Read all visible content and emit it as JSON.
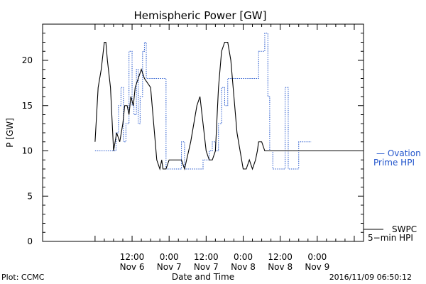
{
  "chart_data": {
    "type": "line",
    "title": "Hemispheric Power [GW]",
    "ylabel": "P [GW]",
    "xlabel": "Date and Time",
    "ylim": [
      0,
      24
    ],
    "xlim_hours": [
      -17,
      87
    ],
    "yticks": [
      0,
      5,
      10,
      15,
      20
    ],
    "xticks": [
      {
        "hour": 12,
        "line1": "12:00",
        "line2": "Nov 6"
      },
      {
        "hour": 24,
        "line1": "0:00",
        "line2": "Nov 7"
      },
      {
        "hour": 36,
        "line1": "12:00",
        "line2": "Nov 7"
      },
      {
        "hour": 48,
        "line1": "0:00",
        "line2": "Nov 8"
      },
      {
        "hour": 60,
        "line1": "12:00",
        "line2": "Nov 8"
      },
      {
        "hour": 72,
        "line1": "0:00",
        "line2": "Nov 9"
      }
    ],
    "series": [
      {
        "name": "Ovation Prime HPI",
        "color": "#2255cc",
        "style": "dotted-step",
        "points": [
          [
            0,
            10
          ],
          [
            6,
            10
          ],
          [
            6.8,
            12
          ],
          [
            7.6,
            15
          ],
          [
            8.4,
            17
          ],
          [
            9.2,
            11
          ],
          [
            10,
            13
          ],
          [
            11,
            21
          ],
          [
            12,
            15
          ],
          [
            12.6,
            14
          ],
          [
            13.4,
            19
          ],
          [
            14,
            13
          ],
          [
            14.6,
            16
          ],
          [
            15.4,
            21
          ],
          [
            16,
            22
          ],
          [
            16.6,
            18
          ],
          [
            18,
            18
          ],
          [
            19.4,
            18
          ],
          [
            21,
            18
          ],
          [
            23,
            8
          ],
          [
            26,
            8
          ],
          [
            28,
            11
          ],
          [
            29,
            8
          ],
          [
            32,
            8
          ],
          [
            33,
            8
          ],
          [
            35,
            9
          ],
          [
            36,
            9
          ],
          [
            37,
            10
          ],
          [
            38,
            11
          ],
          [
            39,
            10
          ],
          [
            40,
            13
          ],
          [
            41,
            17
          ],
          [
            42,
            15
          ],
          [
            43,
            18
          ],
          [
            45,
            18
          ],
          [
            47,
            18
          ],
          [
            49,
            18
          ],
          [
            51,
            18
          ],
          [
            53,
            21
          ],
          [
            55,
            23
          ],
          [
            55.5,
            23
          ],
          [
            56,
            16
          ],
          [
            56.6,
            10
          ],
          [
            57.6,
            8
          ],
          [
            61,
            8
          ],
          [
            61.6,
            17
          ],
          [
            62.6,
            8
          ],
          [
            64,
            8
          ],
          [
            66,
            11
          ],
          [
            68,
            11
          ],
          [
            69,
            11
          ],
          [
            70,
            11
          ]
        ]
      },
      {
        "name": "SWPC 5-min HPI",
        "color": "#000000",
        "style": "solid",
        "points": [
          [
            0,
            11
          ],
          [
            1,
            17
          ],
          [
            2,
            19
          ],
          [
            3,
            22
          ],
          [
            3.5,
            22
          ],
          [
            4,
            20
          ],
          [
            5,
            17
          ],
          [
            6,
            10
          ],
          [
            7,
            12
          ],
          [
            8,
            11
          ],
          [
            9,
            13
          ],
          [
            9.6,
            15
          ],
          [
            10.4,
            15
          ],
          [
            11,
            14
          ],
          [
            11.6,
            16
          ],
          [
            12.4,
            15
          ],
          [
            13,
            17
          ],
          [
            14,
            18
          ],
          [
            15,
            19
          ],
          [
            16,
            18
          ],
          [
            18,
            17
          ],
          [
            19,
            13
          ],
          [
            20,
            9
          ],
          [
            21,
            8
          ],
          [
            21.6,
            9
          ],
          [
            22,
            8
          ],
          [
            23,
            8
          ],
          [
            24,
            9
          ],
          [
            25,
            9
          ],
          [
            28,
            9
          ],
          [
            29,
            8
          ],
          [
            31,
            11
          ],
          [
            32,
            13
          ],
          [
            33,
            15
          ],
          [
            34,
            16
          ],
          [
            35,
            13
          ],
          [
            36,
            10
          ],
          [
            37,
            9
          ],
          [
            38,
            9
          ],
          [
            39,
            10
          ],
          [
            40,
            17
          ],
          [
            41,
            21
          ],
          [
            42,
            22
          ],
          [
            43,
            22
          ],
          [
            44,
            20
          ],
          [
            45,
            16
          ],
          [
            46,
            12
          ],
          [
            47,
            10
          ],
          [
            48,
            8
          ],
          [
            49,
            8
          ],
          [
            50,
            9
          ],
          [
            51,
            8
          ],
          [
            52,
            9
          ],
          [
            52.6,
            10
          ],
          [
            53,
            11
          ],
          [
            54,
            11
          ],
          [
            55,
            10
          ],
          [
            56,
            10
          ],
          [
            60,
            10
          ],
          [
            62,
            10
          ],
          [
            64,
            10
          ]
        ]
      }
    ],
    "legend_ovation_line1": "— Ovation",
    "legend_ovation_line2": "Prime HPI",
    "legend_swpc_line1": "SWPC",
    "legend_swpc_line2": "5−min HPI"
  },
  "footer": {
    "left": "Plot: CCMC",
    "right": "2016/11/09 06:50:12"
  }
}
